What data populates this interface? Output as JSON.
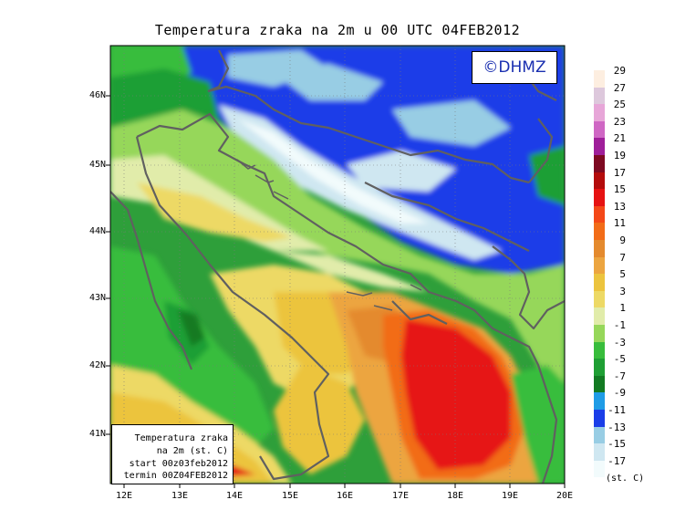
{
  "title": "Temperatura zraka na 2m u 00 UTC 04FEB2012",
  "logo": "©DHMZ",
  "legend_box": {
    "line1": "Temperatura zraka",
    "line2": "na 2m (st. C)",
    "line3": "start 00z03feb2012",
    "line4": "termin 00Z04FEB2012"
  },
  "units": "(st. C)",
  "lat_labels": [
    "46N",
    "45N",
    "44N",
    "43N",
    "42N",
    "41N"
  ],
  "lon_labels": [
    "12E",
    "13E",
    "14E",
    "15E",
    "16E",
    "17E",
    "18E",
    "19E",
    "20E"
  ],
  "colorbar": {
    "labels": [
      "29",
      "27",
      "25",
      "23",
      "21",
      "19",
      "17",
      "15",
      "13",
      "11",
      "9",
      "7",
      "5",
      "3",
      "1",
      "-1",
      "-3",
      "-5",
      "-7",
      "-9",
      "-11",
      "-13",
      "-15",
      "-17"
    ],
    "colors": [
      "#fdeee0",
      "#ddc8dc",
      "#e7a6d8",
      "#cf67c4",
      "#9f1f9a",
      "#7e0a22",
      "#b40c0c",
      "#e61212",
      "#f44818",
      "#f26c18",
      "#e48a2e",
      "#eca540",
      "#ecc43e",
      "#edd965",
      "#e1ecaa",
      "#96d75a",
      "#38bd3c",
      "#1f9f34",
      "#127a22",
      "#1f9ce6",
      "#1a3ee8",
      "#98cde4",
      "#cfe7f1",
      "#f2fbfc"
    ]
  }
}
